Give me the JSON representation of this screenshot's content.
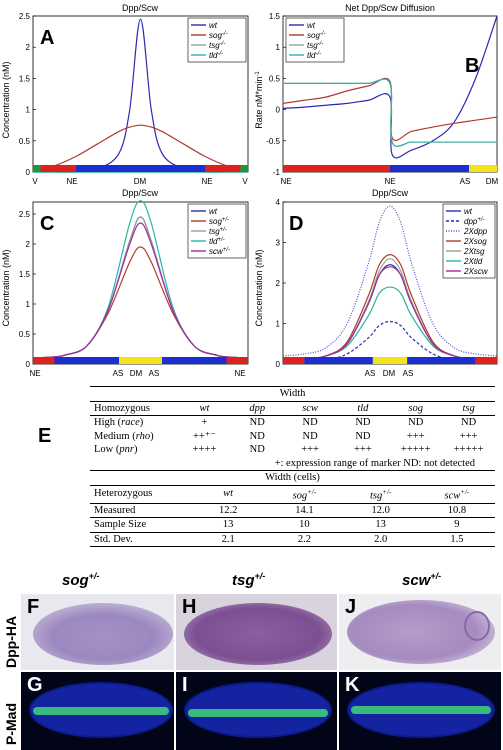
{
  "panel_a": {
    "letter": "A",
    "title": "Dpp/Scw",
    "ylabel": "Concentration (nM)",
    "xticks": [
      "V",
      "NE",
      "DM",
      "NE",
      "V"
    ],
    "yticks": [
      "0",
      "0.5",
      "1",
      "1.5",
      "2",
      "2.5"
    ],
    "legend": [
      "wt",
      "sog",
      "tsg",
      "tld"
    ],
    "legend_sup": [
      "",
      "-/-",
      "-/-",
      "-/-"
    ]
  },
  "panel_b": {
    "letter": "B",
    "title": "Net Dpp/Scw Diffusion",
    "ylabel": "Rate nM*min",
    "ylabel_sup": "-1",
    "xticks": [
      "NE",
      "NE",
      "AS",
      "DM"
    ],
    "yticks": [
      "-1",
      "-0.5",
      "0",
      "0.5",
      "1",
      "1.5"
    ],
    "legend": [
      "wt",
      "sog",
      "tsg",
      "tld"
    ],
    "legend_sup": [
      "",
      "-/-",
      "-/-",
      "-/-"
    ]
  },
  "panel_c": {
    "letter": "C",
    "title": "Dpp/Scw",
    "ylabel": "Concentration (nM)",
    "xticks": [
      "NE",
      "AS",
      "DM",
      "AS",
      "NE"
    ],
    "yticks": [
      "0",
      "0.5",
      "1",
      "1.5",
      "2",
      "2.5"
    ],
    "legend": [
      "wt",
      "sog",
      "tsg",
      "tld",
      "scw"
    ],
    "legend_sup": [
      "",
      "+/-",
      "+/-",
      "+/-",
      "+/-"
    ]
  },
  "panel_d": {
    "letter": "D",
    "title": "Dpp/Scw",
    "ylabel": "Concentration (nM)",
    "xticks": [
      "AS",
      "DM",
      "AS"
    ],
    "yticks": [
      "0",
      "1",
      "2",
      "3",
      "4"
    ],
    "legend": [
      "wt",
      "dpp",
      "2Xdpp",
      "2Xsog",
      "2Xtsg",
      "2Xtld",
      "2Xscw"
    ],
    "legend_sup": [
      "",
      "+/-",
      "",
      "",
      "",
      "",
      ""
    ]
  },
  "chart_data": [
    {
      "type": "line",
      "title": "Dpp/Scw",
      "ylabel": "Concentration (nM)",
      "x": [
        0,
        0.1,
        0.2,
        0.3,
        0.4,
        0.45,
        0.5,
        0.55,
        0.6,
        0.7,
        0.8,
        0.9,
        1.0
      ],
      "xlim": [
        0,
        1
      ],
      "ylim": [
        0,
        2.5
      ],
      "series": [
        {
          "name": "wt",
          "values": [
            0,
            0,
            0,
            0.05,
            0.3,
            1.0,
            2.45,
            1.0,
            0.3,
            0.05,
            0,
            0,
            0
          ]
        },
        {
          "name": "sog-/-",
          "values": [
            0.02,
            0.1,
            0.25,
            0.45,
            0.65,
            0.72,
            0.75,
            0.72,
            0.65,
            0.45,
            0.25,
            0.1,
            0.02
          ]
        },
        {
          "name": "tsg-/-",
          "values": [
            0,
            0,
            0,
            0,
            0,
            0,
            0,
            0,
            0,
            0,
            0,
            0,
            0
          ]
        },
        {
          "name": "tld-/-",
          "values": [
            0,
            0,
            0,
            0,
            0,
            0,
            0,
            0,
            0,
            0,
            0,
            0,
            0
          ]
        }
      ]
    },
    {
      "type": "line",
      "title": "Net Dpp/Scw Diffusion",
      "ylabel": "Rate nM*min-1",
      "x": [
        0,
        0.1,
        0.2,
        0.3,
        0.4,
        0.5,
        0.51,
        0.6,
        0.7,
        0.8,
        0.9,
        1.0
      ],
      "xlim": [
        0,
        1
      ],
      "ylim": [
        -1,
        1.5
      ],
      "series": [
        {
          "name": "wt",
          "values": [
            0.02,
            0.04,
            0.07,
            0.1,
            0.15,
            0.2,
            -0.72,
            -0.65,
            -0.5,
            -0.2,
            0.5,
            1.5
          ]
        },
        {
          "name": "sog-/-",
          "values": [
            0.1,
            0.15,
            0.2,
            0.3,
            0.38,
            0.45,
            -0.45,
            -0.35,
            -0.28,
            -0.22,
            -0.17,
            -0.12
          ]
        },
        {
          "name": "tsg-/-",
          "values": [
            0.42,
            0.42,
            0.42,
            0.42,
            0.42,
            0.42,
            -0.52,
            -0.52,
            -0.52,
            -0.52,
            -0.52,
            -0.52
          ]
        },
        {
          "name": "tld-/-",
          "values": [
            0.42,
            0.42,
            0.42,
            0.42,
            0.42,
            0.42,
            -0.52,
            -0.52,
            -0.52,
            -0.52,
            -0.52,
            -0.52
          ]
        }
      ]
    },
    {
      "type": "line",
      "title": "Dpp/Scw",
      "ylabel": "Concentration (nM)",
      "x": [
        0,
        0.1,
        0.15,
        0.25,
        0.35,
        0.45,
        0.5,
        0.55,
        0.65,
        0.75,
        0.85,
        0.9,
        1.0
      ],
      "xlim": [
        0,
        1
      ],
      "ylim": [
        0,
        2.7
      ],
      "series": [
        {
          "name": "wt",
          "values": [
            0.1,
            0.12,
            0.15,
            0.3,
            0.9,
            2.05,
            2.45,
            2.05,
            0.9,
            0.3,
            0.15,
            0.12,
            0.1
          ]
        },
        {
          "name": "sog+/-",
          "values": [
            0.1,
            0.12,
            0.15,
            0.3,
            0.85,
            1.7,
            1.95,
            1.7,
            0.85,
            0.3,
            0.15,
            0.12,
            0.1
          ]
        },
        {
          "name": "tsg+/-",
          "values": [
            0.1,
            0.12,
            0.15,
            0.3,
            0.9,
            2.05,
            2.45,
            2.05,
            0.9,
            0.3,
            0.15,
            0.12,
            0.1
          ]
        },
        {
          "name": "tld+/-",
          "values": [
            0.1,
            0.12,
            0.15,
            0.3,
            0.95,
            2.35,
            2.72,
            2.35,
            0.95,
            0.3,
            0.15,
            0.12,
            0.1
          ]
        },
        {
          "name": "scw+/-",
          "values": [
            0.1,
            0.12,
            0.15,
            0.3,
            0.9,
            2.0,
            2.35,
            2.0,
            0.9,
            0.3,
            0.15,
            0.12,
            0.1
          ]
        }
      ]
    },
    {
      "type": "line",
      "title": "Dpp/Scw",
      "ylabel": "Concentration (nM)",
      "x": [
        0,
        0.1,
        0.2,
        0.3,
        0.4,
        0.45,
        0.5,
        0.55,
        0.6,
        0.7,
        0.8,
        0.9,
        1.0
      ],
      "xlim": [
        0,
        1
      ],
      "ylim": [
        0,
        4
      ],
      "series": [
        {
          "name": "wt",
          "values": [
            0.1,
            0.12,
            0.2,
            0.5,
            1.5,
            2.2,
            2.45,
            2.2,
            1.5,
            0.5,
            0.2,
            0.12,
            0.1
          ]
        },
        {
          "name": "dpp+/-",
          "values": [
            0.05,
            0.06,
            0.1,
            0.25,
            0.65,
            0.95,
            1.05,
            0.95,
            0.65,
            0.25,
            0.1,
            0.06,
            0.05
          ]
        },
        {
          "name": "2Xdpp",
          "values": [
            0.2,
            0.25,
            0.4,
            1.0,
            2.5,
            3.5,
            3.9,
            3.5,
            2.5,
            1.0,
            0.4,
            0.25,
            0.2
          ]
        },
        {
          "name": "2Xsog",
          "values": [
            0.1,
            0.12,
            0.2,
            0.55,
            1.7,
            2.45,
            2.7,
            2.45,
            1.7,
            0.55,
            0.2,
            0.12,
            0.1
          ]
        },
        {
          "name": "2Xtsg",
          "values": [
            0.1,
            0.12,
            0.2,
            0.5,
            1.55,
            2.3,
            2.6,
            2.3,
            1.55,
            0.5,
            0.2,
            0.12,
            0.1
          ]
        },
        {
          "name": "2Xtld",
          "values": [
            0.1,
            0.12,
            0.2,
            0.45,
            1.2,
            1.75,
            1.9,
            1.75,
            1.2,
            0.45,
            0.2,
            0.12,
            0.1
          ]
        },
        {
          "name": "2Xscw",
          "values": [
            0.1,
            0.12,
            0.2,
            0.5,
            1.5,
            2.2,
            2.4,
            2.2,
            1.5,
            0.5,
            0.2,
            0.12,
            0.1
          ]
        }
      ]
    }
  ],
  "colors": {
    "wt": "#2b2bb0",
    "sog": "#b03a2e",
    "tsg": "#8fa88a",
    "tld": "#2ab5a5",
    "scw": "#a02aa0",
    "dpp": "#2b2bb0",
    "2Xdpp": "#5050c8",
    "2Xsog": "#b03a2e",
    "2Xtsg": "#8fa88a",
    "2Xtld": "#2ab590",
    "2Xscw": "#a02aa0",
    "bar_red": "#e0201b",
    "bar_blue": "#1a2fd0",
    "bar_yellow": "#f5e21a",
    "bar_green": "#1a9a30"
  },
  "table_e": {
    "letter": "E",
    "width_header": "Width",
    "homozygous_header": "Homozygous",
    "genotypes": [
      "wt",
      "dpp",
      "scw",
      "tld",
      "sog",
      "tsg"
    ],
    "rows": [
      {
        "label": "High (",
        "gene": "race",
        "close": ")",
        "cells": [
          "+",
          "ND",
          "ND",
          "ND",
          "ND",
          "ND"
        ]
      },
      {
        "label": "Medium (",
        "gene": "rho",
        "close": ")",
        "cells": [
          "++⁺⁻",
          "ND",
          "ND",
          "ND",
          "+++",
          "+++"
        ]
      },
      {
        "label": "Low (",
        "gene": "pnr",
        "close": ")",
        "cells": [
          "++++",
          "ND",
          "+++",
          "+++",
          "+++++",
          "+++++"
        ]
      }
    ],
    "note": "+: expression range of marker  ND: not detected",
    "width_cells_header": "Width (cells)",
    "heterozygous_header": "Heterozygous",
    "het_genotypes": [
      "wt",
      "sog",
      "tsg",
      "scw"
    ],
    "het_sup": [
      "",
      "+/-",
      "+/-",
      "+/-"
    ],
    "het_rows": [
      {
        "label": "Measured",
        "cells": [
          "12.2",
          "14.1",
          "12.0",
          "10.8"
        ]
      },
      {
        "label": "Sample Size",
        "cells": [
          "13",
          "10",
          "13",
          "9"
        ]
      },
      {
        "label": "Std. Dev.",
        "cells": [
          "2.1",
          "2.2",
          "2.0",
          "1.5"
        ]
      }
    ]
  },
  "embryos": {
    "titles": [
      {
        "gene": "sog",
        "sup": "+/-"
      },
      {
        "gene": "tsg",
        "sup": "+/-"
      },
      {
        "gene": "scw",
        "sup": "+/-"
      }
    ],
    "row_labels": [
      "Dpp-HA",
      "P-Mad"
    ],
    "letters_top": [
      "F",
      "H",
      "J"
    ],
    "letters_bottom": [
      "G",
      "I",
      "K"
    ]
  }
}
